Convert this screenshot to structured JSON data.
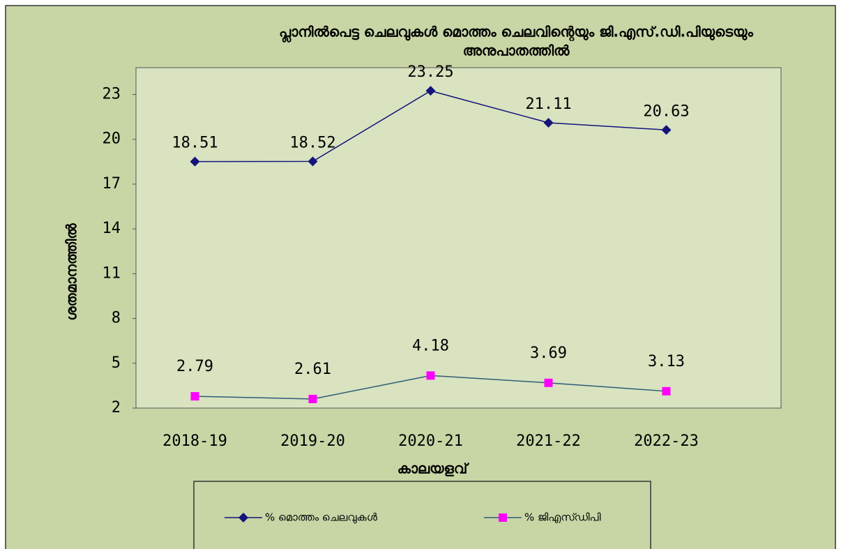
{
  "chart_data": {
    "type": "line",
    "title": "പ്ലാനിൽപെട്ട ചെലവുകൾ മൊത്തം ചെലവിന്റെയും ജി.എസ്.ഡി.പിയുടെയും",
    "subtitle": "അനുപാതത്തിൽ",
    "x_label": "കാലയളവ്",
    "y_label": "ശതമാനത്തിൽ",
    "categories": [
      "2018-19",
      "2019-20",
      "2020-21",
      "2021-22",
      "2022-23"
    ],
    "series": [
      {
        "name": "% മൊത്തം ചെലവുകൾ",
        "color": "#14147a",
        "line_color": "#14147a",
        "marker": "diamond",
        "values": [
          18.51,
          18.52,
          23.25,
          21.11,
          20.63
        ]
      },
      {
        "name": "% ജിഎസ്ഡിപി",
        "color": "#ff00ff",
        "line_color": "#2f5a78",
        "marker": "square",
        "values": [
          2.79,
          2.61,
          4.18,
          3.69,
          3.13
        ]
      }
    ],
    "ylim": [
      2,
      24.8
    ],
    "yticks": [
      2,
      5,
      8,
      11,
      14,
      17,
      20,
      23
    ],
    "legend": "bottom"
  }
}
